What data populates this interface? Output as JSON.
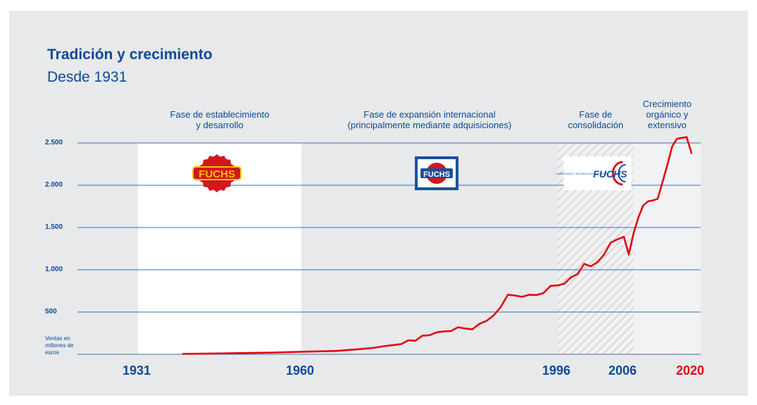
{
  "chart_data": {
    "type": "line",
    "title": "Tradición y crecimiento",
    "subtitle": "Desde 1931",
    "ylabel": "Ventas en millones de euros",
    "ylim": [
      0,
      2500
    ],
    "y_ticks": [
      "2.500",
      "2.000",
      "1.500",
      "1.000",
      "500"
    ],
    "y_tick_values": [
      2500,
      2000,
      1500,
      1000,
      500
    ],
    "x_ticks": [
      {
        "label": "1931",
        "value": 1931,
        "color": "#0a4a96"
      },
      {
        "label": "1960",
        "value": 1960,
        "color": "#0a4a96"
      },
      {
        "label": "1996",
        "value": 1996,
        "color": "#0a4a96"
      },
      {
        "label": "2006",
        "value": 2006,
        "color": "#0a4a96"
      },
      {
        "label": "2020",
        "value": 2020,
        "color": "#e30613"
      }
    ],
    "xlim": [
      1920,
      2021
    ],
    "grid": true,
    "phases": [
      {
        "line1": "Fase de establecimiento",
        "line2": "y desarrollo",
        "line3": "",
        "from": 1931,
        "to": 1960,
        "style": "white"
      },
      {
        "line1": "Fase de expansión internacional",
        "line2": "(principalmente mediante adquisiciones)",
        "line3": "",
        "from": 1960,
        "to": 1996,
        "style": "none"
      },
      {
        "line1": "Fase de",
        "line2": "consolidación",
        "line3": "",
        "from": 1996,
        "to": 2008,
        "style": "hatched"
      },
      {
        "line1": "Crecimiento",
        "line2": "orgánico y",
        "line3": "extensivo",
        "from": 2008,
        "to": 2021,
        "style": "light"
      }
    ],
    "logos": [
      {
        "text": "FUCHS",
        "style": "badge-red",
        "year": 1945
      },
      {
        "text": "FUCHS",
        "style": "badge-boxed",
        "year": 1979
      },
      {
        "text": "FUCHS",
        "tagline": "LUBRICANTS. TECHNOLOGY. PEOPLE.",
        "style": "modern",
        "year": 2002
      }
    ],
    "series": [
      {
        "color": "#e30613",
        "x": [
          1939,
          1945,
          1950,
          1955,
          1960,
          1965,
          1968,
          1970,
          1972,
          1973,
          1974,
          1975,
          1976,
          1977,
          1978,
          1979,
          1980,
          1981,
          1982,
          1983,
          1984,
          1985,
          1986,
          1987,
          1988,
          1989,
          1990,
          1991,
          1992,
          1993,
          1994,
          1995,
          1996,
          1997,
          1998,
          1999,
          2000,
          2001,
          2002,
          2003,
          2004,
          2005,
          2006,
          2007,
          2008,
          2009,
          2010,
          2011,
          2012,
          2013,
          2014,
          2015,
          2016,
          2017,
          2018,
          2019,
          2020
        ],
        "values": [
          5,
          10,
          15,
          20,
          30,
          40,
          60,
          75,
          100,
          110,
          120,
          165,
          160,
          220,
          225,
          260,
          270,
          275,
          320,
          305,
          295,
          360,
          395,
          460,
          560,
          705,
          695,
          680,
          705,
          700,
          725,
          810,
          815,
          835,
          910,
          950,
          1070,
          1040,
          1090,
          1180,
          1320,
          1360,
          1390,
          1180,
          1430,
          1620,
          1760,
          1810,
          1820,
          1840,
          2040,
          2240,
          2460,
          2550,
          2560,
          2570,
          2380
        ]
      }
    ]
  }
}
